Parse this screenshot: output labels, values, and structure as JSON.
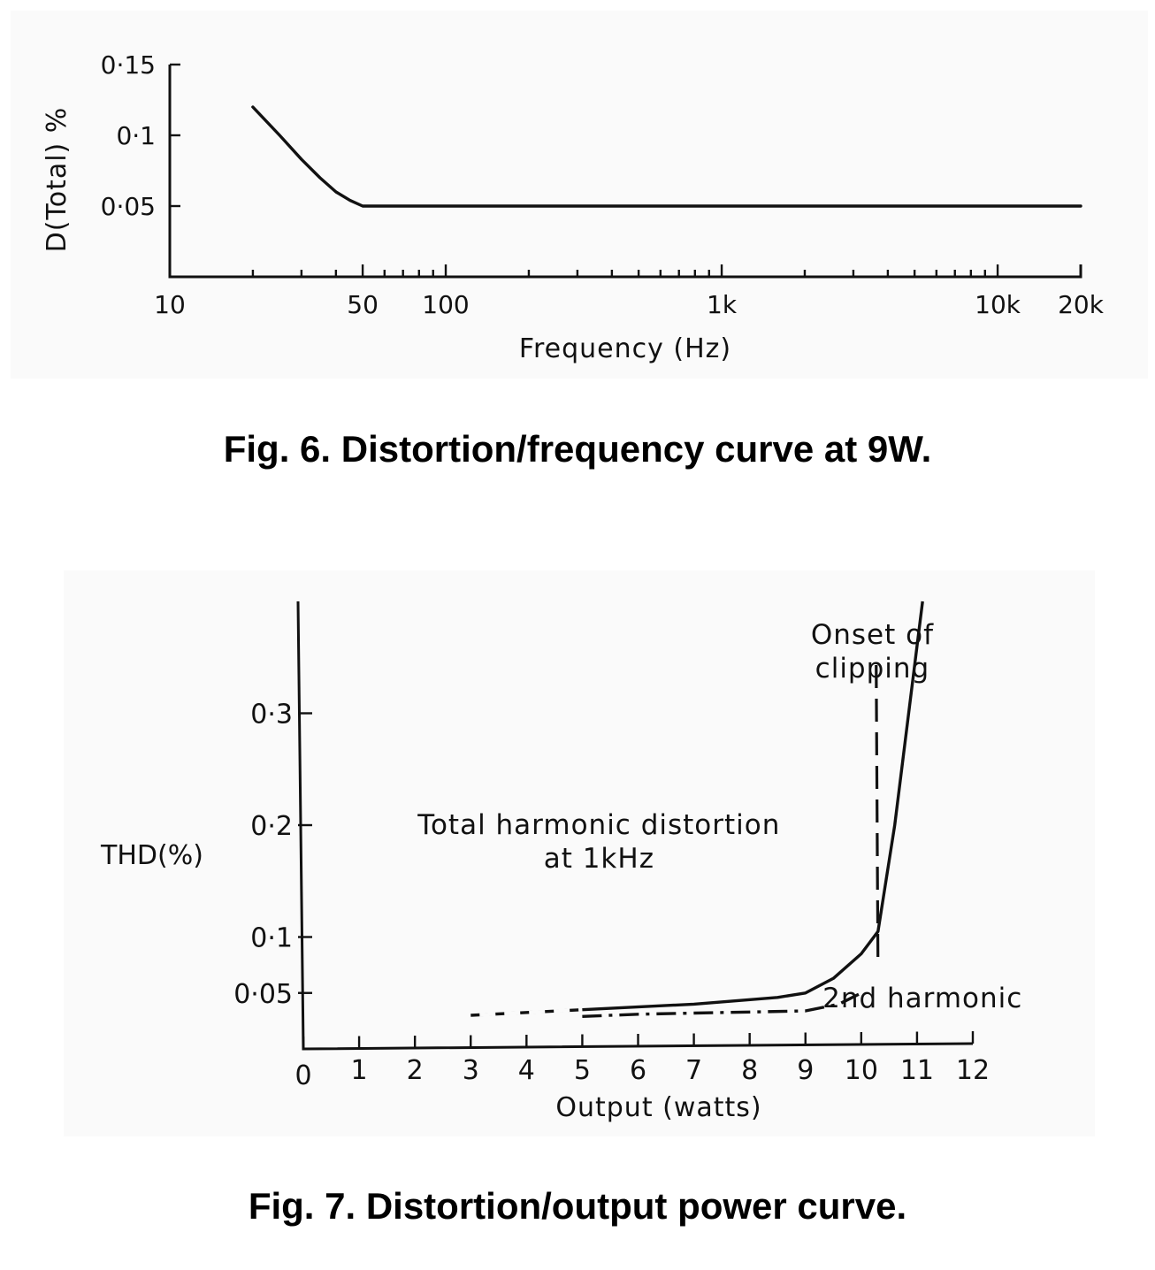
{
  "charts": [
    {
      "id": "fig6",
      "caption": "Fig. 6. Distortion/frequency curve at 9W."
    },
    {
      "id": "fig7",
      "caption": "Fig. 7. Distortion/output power curve."
    }
  ],
  "chart_data": [
    {
      "type": "line",
      "title": "Fig. 6. Distortion/frequency curve at 9W.",
      "xlabel": "Frequency (Hz)",
      "ylabel": "D(Total) %",
      "xscale": "log",
      "xlim": [
        10,
        20000
      ],
      "ylim": [
        0,
        0.15
      ],
      "x_ticks": [
        10,
        50,
        100,
        1000,
        10000,
        20000
      ],
      "x_tick_labels": [
        "10",
        "50",
        "100",
        "1k",
        "10k",
        "20k"
      ],
      "y_ticks": [
        0.05,
        0.1,
        0.15
      ],
      "y_tick_labels": [
        "0·05",
        "0·1",
        "0·15"
      ],
      "series": [
        {
          "name": "D(Total)",
          "style": "solid",
          "x": [
            20,
            25,
            30,
            35,
            40,
            45,
            50,
            60,
            100,
            1000,
            10000,
            20000
          ],
          "y": [
            0.12,
            0.1,
            0.083,
            0.07,
            0.06,
            0.054,
            0.05,
            0.05,
            0.05,
            0.05,
            0.05,
            0.05
          ]
        }
      ]
    },
    {
      "type": "line",
      "title": "Fig. 7. Distortion/output power curve.",
      "xlabel": "Output (watts)",
      "ylabel": "THD(%)",
      "xlim": [
        0,
        12
      ],
      "ylim": [
        0,
        0.4
      ],
      "x_ticks": [
        0,
        1,
        2,
        3,
        4,
        5,
        6,
        7,
        8,
        9,
        10,
        11,
        12
      ],
      "x_tick_labels": [
        "0",
        "1",
        "2",
        "3",
        "4",
        "5",
        "6",
        "7",
        "8",
        "9",
        "10",
        "11",
        "12"
      ],
      "y_ticks": [
        0.05,
        0.1,
        0.2,
        0.3
      ],
      "y_tick_labels": [
        "0·05",
        "0·1",
        "0·2",
        "0·3"
      ],
      "annotations": [
        {
          "text": [
            "Total harmonic distortion",
            "at 1kHz"
          ],
          "x": 5.3,
          "y": 0.2
        },
        {
          "text": [
            "Onset of",
            "clipping"
          ],
          "x": 10.2,
          "y": 0.37
        },
        {
          "text": [
            "2nd harmonic"
          ],
          "x": 11.1,
          "y": 0.045
        }
      ],
      "markers": [
        {
          "name": "Onset of clipping",
          "type": "vline",
          "x": 10.3,
          "style": "dashed"
        }
      ],
      "series": [
        {
          "name": "Total harmonic distortion",
          "style": "solid",
          "x": [
            3,
            5,
            7,
            8.5,
            9,
            9.5,
            10,
            10.3,
            10.6,
            11,
            11.1
          ],
          "y": [
            0.03,
            0.035,
            0.04,
            0.046,
            0.05,
            0.063,
            0.085,
            0.105,
            0.2,
            0.36,
            0.4
          ]
        },
        {
          "name": "2nd harmonic",
          "style": "dashdot",
          "x": [
            5,
            6,
            7,
            8,
            9,
            9.6,
            10
          ],
          "y": [
            0.029,
            0.031,
            0.032,
            0.033,
            0.034,
            0.04,
            0.05
          ]
        }
      ]
    }
  ]
}
